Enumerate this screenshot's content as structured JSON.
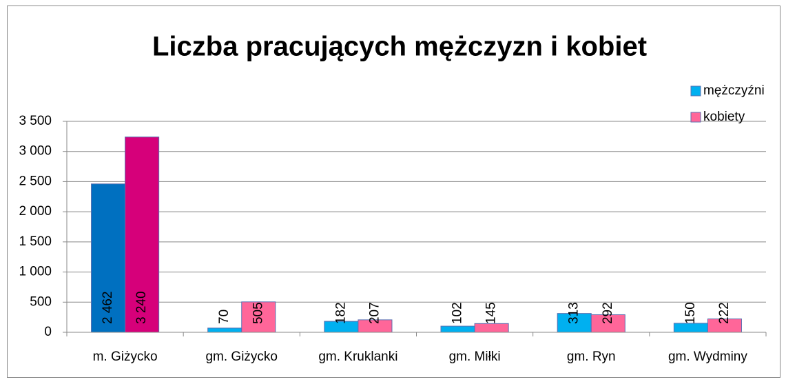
{
  "chart_data": {
    "type": "bar",
    "title": "Liczba pracujących mężczyzn i kobiet",
    "categories": [
      "m. Giżycko",
      "gm. Giżycko",
      "gm. Kruklanki",
      "gm. Miłki",
      "gm. Ryn",
      "gm. Wydminy"
    ],
    "series": [
      {
        "name": "mężczyźni",
        "color": "#00b0f0",
        "colors": [
          "#0070c0",
          "#00b0f0",
          "#00b0f0",
          "#00b0f0",
          "#00b0f0",
          "#00b0f0"
        ],
        "values": [
          2462,
          70,
          182,
          102,
          313,
          150
        ],
        "value_labels": [
          "2 462",
          "70",
          "182",
          "102",
          "313",
          "150"
        ]
      },
      {
        "name": "kobiety",
        "color": "#ff6699",
        "colors": [
          "#d6007a",
          "#ff6699",
          "#ff6699",
          "#ff6699",
          "#ff6699",
          "#ff6699"
        ],
        "values": [
          3240,
          505,
          207,
          145,
          292,
          222
        ],
        "value_labels": [
          "3 240",
          "505",
          "207",
          "145",
          "292",
          "222"
        ]
      }
    ],
    "ylim": [
      0,
      3500
    ],
    "yticks": [
      0,
      500,
      {
        "value": 1000,
        "label": "1 000"
      },
      {
        "value": 1500,
        "label": "1 500"
      },
      {
        "value": 2000,
        "label": "2 000"
      },
      {
        "value": 2500,
        "label": "2 500"
      },
      {
        "value": 3000,
        "label": "3 000"
      },
      {
        "value": 3500,
        "label": "3 500"
      }
    ],
    "grid": true,
    "legend": "top-right"
  }
}
